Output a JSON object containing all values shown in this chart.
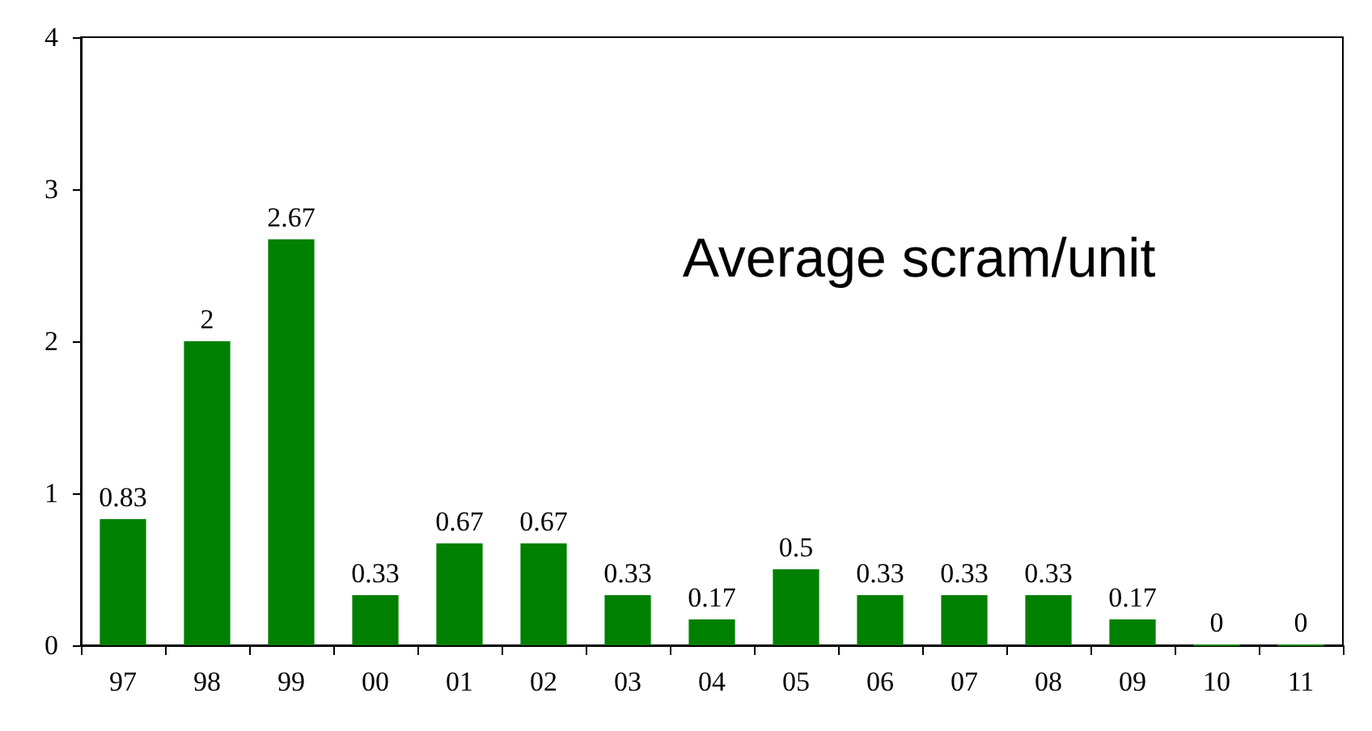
{
  "chart_data": {
    "type": "bar",
    "title": "Average scram/unit",
    "categories": [
      "97",
      "98",
      "99",
      "00",
      "01",
      "02",
      "03",
      "04",
      "05",
      "06",
      "07",
      "08",
      "09",
      "10",
      "11"
    ],
    "values": [
      0.83,
      2,
      2.67,
      0.33,
      0.67,
      0.67,
      0.33,
      0.17,
      0.5,
      0.33,
      0.33,
      0.33,
      0.17,
      0,
      0
    ],
    "color": "#008000",
    "ylim": [
      0,
      4
    ],
    "yticks": [
      0,
      1,
      2,
      3,
      4
    ],
    "grid": false,
    "data_labels": true
  }
}
